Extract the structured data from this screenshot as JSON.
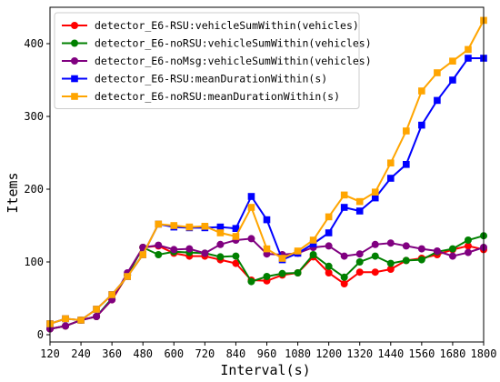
{
  "chart_data": {
    "type": "line",
    "xlabel": "Interval(s)",
    "ylabel": "Items",
    "xlim": [
      120,
      1800
    ],
    "ylim": [
      -10,
      450
    ],
    "xticks": [
      120,
      240,
      360,
      480,
      600,
      720,
      840,
      960,
      1080,
      1200,
      1320,
      1440,
      1560,
      1680,
      1800
    ],
    "yticks": [
      0,
      100,
      200,
      300,
      400
    ],
    "legend_position": "top-left",
    "grid": false,
    "x": [
      120,
      180,
      240,
      300,
      360,
      420,
      480,
      540,
      600,
      660,
      720,
      780,
      840,
      900,
      960,
      1020,
      1080,
      1140,
      1200,
      1260,
      1320,
      1380,
      1440,
      1500,
      1560,
      1620,
      1680,
      1740,
      1800
    ],
    "series": [
      {
        "name": "detector_E6-RSU:vehicleSumWithin(vehicles)",
        "color": "#ff0000",
        "marker": "circle",
        "values": [
          8,
          12,
          20,
          25,
          48,
          82,
          120,
          122,
          112,
          108,
          108,
          103,
          98,
          75,
          74,
          82,
          85,
          107,
          85,
          70,
          86,
          86,
          90,
          102,
          105,
          110,
          117,
          122,
          117
        ]
      },
      {
        "name": "detector_E6-noRSU:vehicleSumWithin(vehicles)",
        "color": "#008000",
        "marker": "circle",
        "values": [
          8,
          12,
          20,
          25,
          50,
          82,
          120,
          110,
          114,
          113,
          112,
          107,
          108,
          73,
          80,
          84,
          85,
          110,
          94,
          79,
          100,
          108,
          98,
          102,
          103,
          114,
          118,
          130,
          136
        ]
      },
      {
        "name": "detector_E6-noMsg:vehicleSumWithin(vehicles)",
        "color": "#800080",
        "marker": "circle",
        "values": [
          8,
          12,
          20,
          25,
          48,
          85,
          120,
          123,
          117,
          118,
          112,
          124,
          130,
          132,
          111,
          110,
          112,
          120,
          122,
          108,
          111,
          124,
          126,
          122,
          118,
          115,
          108,
          113,
          120
        ]
      },
      {
        "name": "detector_E6-RSU:meanDurationWithin(s)",
        "color": "#0000ff",
        "marker": "square",
        "values": [
          15,
          22,
          20,
          35,
          55,
          80,
          110,
          152,
          148,
          147,
          147,
          148,
          146,
          190,
          158,
          103,
          112,
          125,
          140,
          175,
          170,
          188,
          215,
          234,
          288,
          322,
          350,
          380,
          380
        ]
      },
      {
        "name": "detector_E6-noRSU:meanDurationWithin(s)",
        "color": "#ffa500",
        "marker": "square",
        "values": [
          15,
          22,
          20,
          35,
          55,
          80,
          110,
          152,
          150,
          148,
          149,
          140,
          135,
          175,
          118,
          105,
          115,
          130,
          162,
          192,
          183,
          196,
          236,
          280,
          335,
          360,
          376,
          392,
          432
        ]
      }
    ]
  }
}
